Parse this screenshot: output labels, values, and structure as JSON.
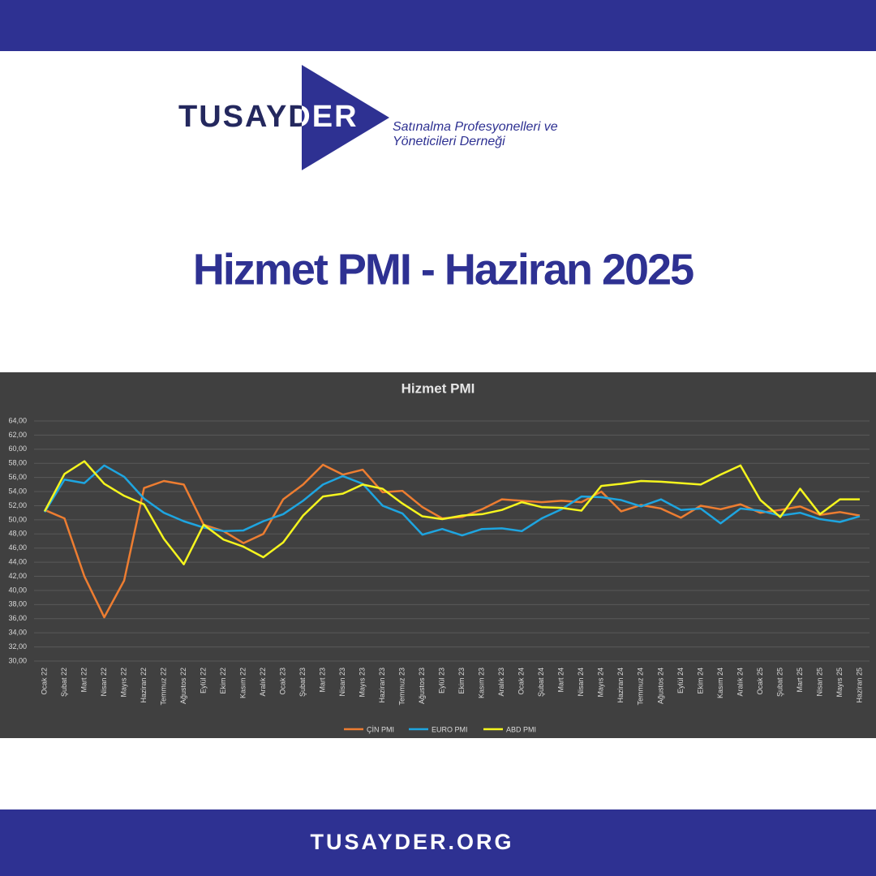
{
  "header": {
    "logo": "TUSAYDER",
    "tagline": [
      "Satınalma Profesyonelleri ve",
      "Yöneticileri Derneği"
    ]
  },
  "title": "Hizmet PMI - Haziran 2025",
  "footer": "TUSAYDER.ORG",
  "chart_data": {
    "type": "line",
    "title": "Hizmet PMI",
    "categories": [
      "Ocak 22",
      "Şubat 22",
      "Mart 22",
      "Nisan 22",
      "Mayıs 22",
      "Haziran 22",
      "Temmuz 22",
      "Ağustos 22",
      "Eylül 22",
      "Ekim 22",
      "Kasım 22",
      "Aralık 22",
      "Ocak 23",
      "Şubat 23",
      "Mart 23",
      "Nisan 23",
      "Mayıs 23",
      "Haziran 23",
      "Temmuz 23",
      "Ağustos 23",
      "Eylül 23",
      "Ekim 23",
      "Kasım 23",
      "Aralık 23",
      "Ocak 24",
      "Şubat 24",
      "Mart 24",
      "Nisan 24",
      "Mayıs 24",
      "Haziran 24",
      "Temmuz 24",
      "Ağustos 24",
      "Eylül 24",
      "Ekim 24",
      "Kasım 24",
      "Aralık 24",
      "Ocak 25",
      "Şubat 25",
      "Mart 25",
      "Nisan 25",
      "Mayıs 25",
      "Haziran 25"
    ],
    "series": [
      {
        "name": "ÇİN PMI",
        "color": "#ed7d31",
        "values": [
          51.4,
          50.2,
          42.0,
          36.2,
          41.4,
          54.5,
          55.5,
          55.0,
          49.3,
          48.4,
          46.7,
          48.0,
          52.9,
          55.0,
          57.8,
          56.4,
          57.1,
          53.9,
          54.1,
          51.8,
          50.2,
          50.4,
          51.5,
          52.9,
          52.7,
          52.5,
          52.7,
          52.5,
          54.0,
          51.2,
          52.1,
          51.6,
          50.3,
          52.0,
          51.5,
          52.2,
          51.0,
          51.4,
          51.9,
          50.7,
          51.1,
          50.6
        ]
      },
      {
        "name": "EURO PMI",
        "color": "#1ea5e0",
        "values": [
          51.1,
          55.7,
          55.2,
          57.7,
          56.1,
          53.0,
          51.0,
          49.8,
          48.9,
          48.4,
          48.5,
          49.8,
          50.8,
          52.7,
          55.0,
          56.2,
          55.1,
          52.0,
          50.9,
          47.9,
          48.7,
          47.8,
          48.7,
          48.8,
          48.4,
          50.2,
          51.5,
          53.3,
          53.2,
          52.8,
          51.9,
          52.9,
          51.4,
          51.6,
          49.5,
          51.6,
          51.3,
          50.6,
          51.0,
          50.1,
          49.7,
          50.5
        ]
      },
      {
        "name": "ABD PMI",
        "color": "#f5f51e",
        "values": [
          51.2,
          56.5,
          58.3,
          55.1,
          53.4,
          52.2,
          47.3,
          43.7,
          49.3,
          47.2,
          46.2,
          44.7,
          46.8,
          50.6,
          53.3,
          53.7,
          55.0,
          54.4,
          52.3,
          50.5,
          50.1,
          50.6,
          50.8,
          51.4,
          52.5,
          51.8,
          51.7,
          51.3,
          54.8,
          55.1,
          55.5,
          55.4,
          55.2,
          55.0,
          56.4,
          57.7,
          52.8,
          50.4,
          54.4,
          50.8,
          52.9,
          52.9
        ]
      }
    ],
    "ylim": [
      30,
      64
    ],
    "yticks": [
      {
        "value": 30,
        "label": "30,00"
      },
      {
        "value": 32,
        "label": "32,00"
      },
      {
        "value": 34,
        "label": "34,00"
      },
      {
        "value": 36,
        "label": "36,00"
      },
      {
        "value": 38,
        "label": "38,00"
      },
      {
        "value": 40,
        "label": "40,00"
      },
      {
        "value": 42,
        "label": "42,00"
      },
      {
        "value": 44,
        "label": "44,00"
      },
      {
        "value": 46,
        "label": "46,00"
      },
      {
        "value": 48,
        "label": "48,00"
      },
      {
        "value": 50,
        "label": "50,00"
      },
      {
        "value": 52,
        "label": "52,00"
      },
      {
        "value": 54,
        "label": "54,00"
      },
      {
        "value": 56,
        "label": "56,00"
      },
      {
        "value": 58,
        "label": "58,00"
      },
      {
        "value": 60,
        "label": "60,00"
      },
      {
        "value": 62,
        "label": "62,00"
      },
      {
        "value": 64,
        "label": "64,00"
      }
    ],
    "grid": true,
    "legend": "bottom"
  }
}
